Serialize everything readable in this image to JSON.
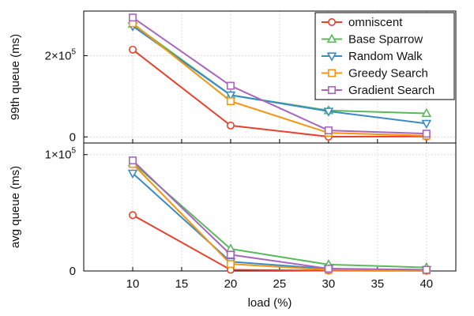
{
  "chart_data": [
    {
      "type": "line",
      "ylabel": "99th queue (ms)",
      "x": [
        10,
        20,
        30,
        40
      ],
      "ylim": [
        -15000,
        310000
      ],
      "yticks": [
        {
          "value": 0,
          "label": "0"
        },
        {
          "value": 200000,
          "label": "2×10",
          "exp": "5"
        }
      ],
      "grid": true,
      "legend": "top-right",
      "series": [
        {
          "name": "omniscent",
          "color": "#e8412e",
          "marker": "circle",
          "values": [
            215000,
            28000,
            500,
            1000
          ]
        },
        {
          "name": "Base Sparrow",
          "color": "#5bb85b",
          "marker": "triangle-up",
          "values": [
            278000,
            103000,
            65000,
            58000
          ]
        },
        {
          "name": "Random Walk",
          "color": "#3a8cc6",
          "marker": "triangle-down",
          "values": [
            273000,
            103000,
            63000,
            33000
          ]
        },
        {
          "name": "Greedy Search",
          "color": "#f4950f",
          "marker": "square",
          "values": [
            280000,
            88000,
            10000,
            3000
          ]
        },
        {
          "name": "Gradient Search",
          "color": "#a766be",
          "marker": "square",
          "values": [
            294000,
            126000,
            16000,
            8000
          ]
        }
      ]
    },
    {
      "type": "line",
      "ylabel": "avg queue (ms)",
      "xlabel": "load (%)",
      "x": [
        10,
        20,
        30,
        40
      ],
      "xlim": [
        5,
        43
      ],
      "xticks": [
        10,
        15,
        20,
        25,
        30,
        35,
        40
      ],
      "ylim": [
        0,
        110000
      ],
      "yticks": [
        {
          "value": 0,
          "label": "0"
        },
        {
          "value": 100000,
          "label": "1×10",
          "exp": "5"
        }
      ],
      "grid": true,
      "series": [
        {
          "name": "omniscent",
          "color": "#e8412e",
          "marker": "circle",
          "values": [
            48000,
            1000,
            300,
            200
          ]
        },
        {
          "name": "Base Sparrow",
          "color": "#5bb85b",
          "marker": "triangle-up",
          "values": [
            93000,
            19000,
            5500,
            3000
          ]
        },
        {
          "name": "Random Walk",
          "color": "#3a8cc6",
          "marker": "triangle-down",
          "values": [
            84000,
            8000,
            1800,
            1000
          ]
        },
        {
          "name": "Greedy Search",
          "color": "#f4950f",
          "marker": "square",
          "values": [
            92000,
            6000,
            1000,
            500
          ]
        },
        {
          "name": "Gradient Search",
          "color": "#a766be",
          "marker": "square",
          "values": [
            95000,
            14000,
            2000,
            1000
          ]
        }
      ]
    }
  ]
}
